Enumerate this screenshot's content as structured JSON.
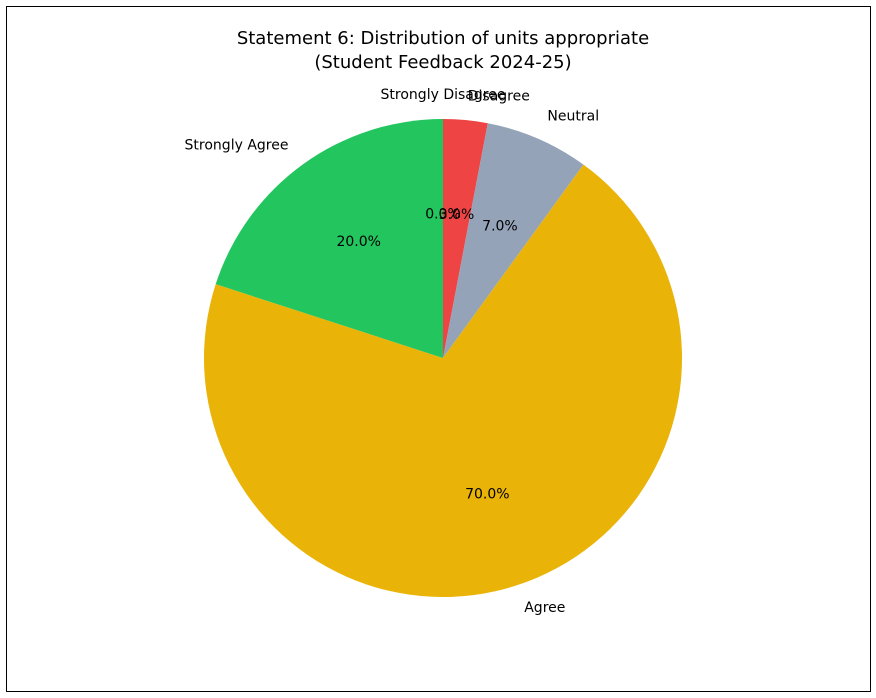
{
  "chart_data": {
    "type": "pie",
    "title": "Statement 6: Distribution of units appropriate",
    "subtitle": "(Student Feedback 2024-25)",
    "categories": [
      "Strongly Disagree",
      "Disagree",
      "Neutral",
      "Agree",
      "Strongly Agree"
    ],
    "values": [
      0.0,
      3.0,
      7.0,
      70.0,
      20.0
    ],
    "value_labels": [
      "0.0%",
      "3.0%",
      "7.0%",
      "70.0%",
      "20.0%"
    ],
    "colors": [
      "#cccccc",
      "#ef4444",
      "#94a3b8",
      "#eab308",
      "#22c55e"
    ],
    "start_angle": "top (12 o'clock)",
    "direction": "clockwise"
  }
}
